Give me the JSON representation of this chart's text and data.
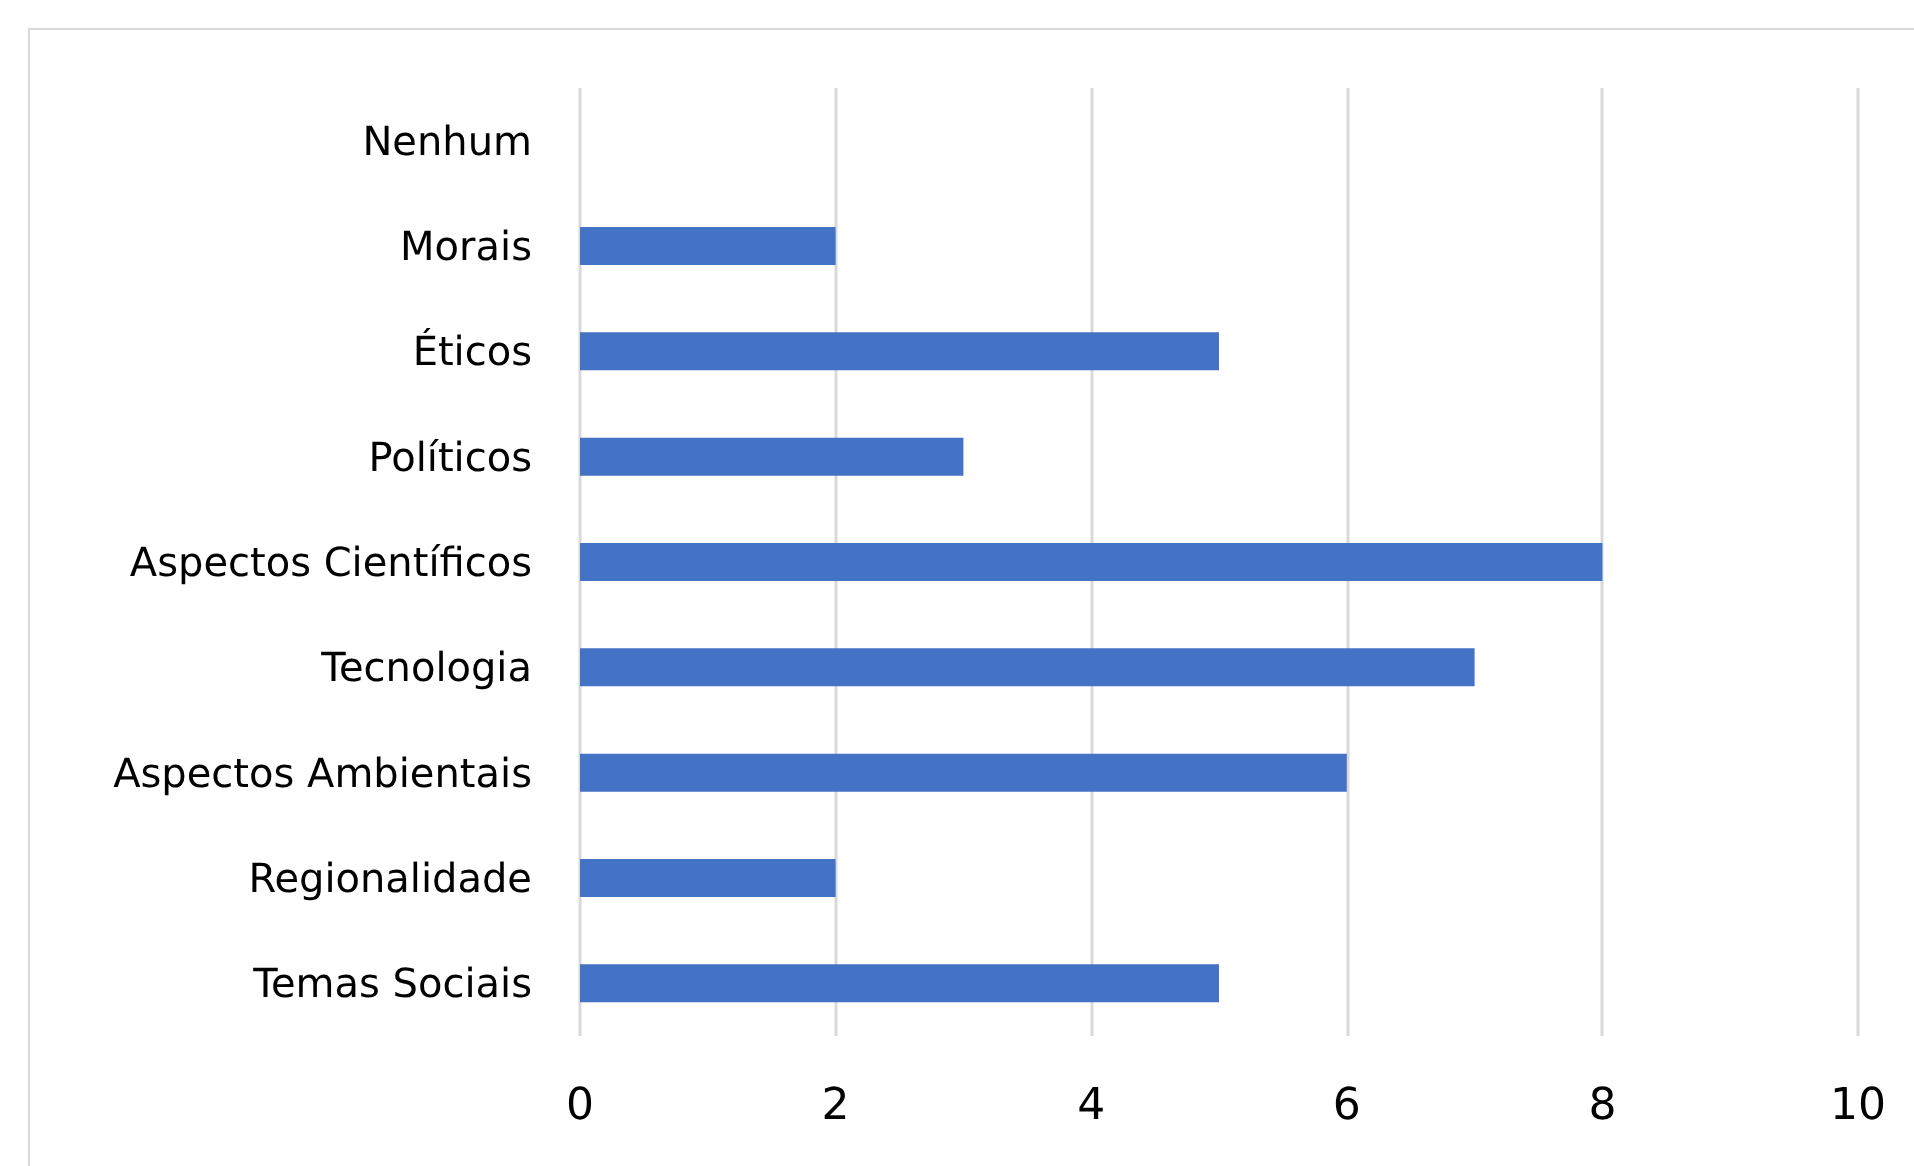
{
  "chart_data": {
    "type": "bar",
    "orientation": "horizontal",
    "categories": [
      "Nenhum",
      "Morais",
      "Éticos",
      "Políticos",
      "Aspectos Científicos",
      "Tecnologia",
      "Aspectos Ambientais",
      "Regionalidade",
      "Temas Sociais"
    ],
    "values": [
      0,
      2,
      5,
      3,
      8,
      7,
      6,
      2,
      5
    ],
    "color": "#4472c4",
    "xlim": [
      0,
      10
    ],
    "xticks": [
      0,
      2,
      4,
      6,
      8,
      10
    ],
    "grid": "x"
  }
}
